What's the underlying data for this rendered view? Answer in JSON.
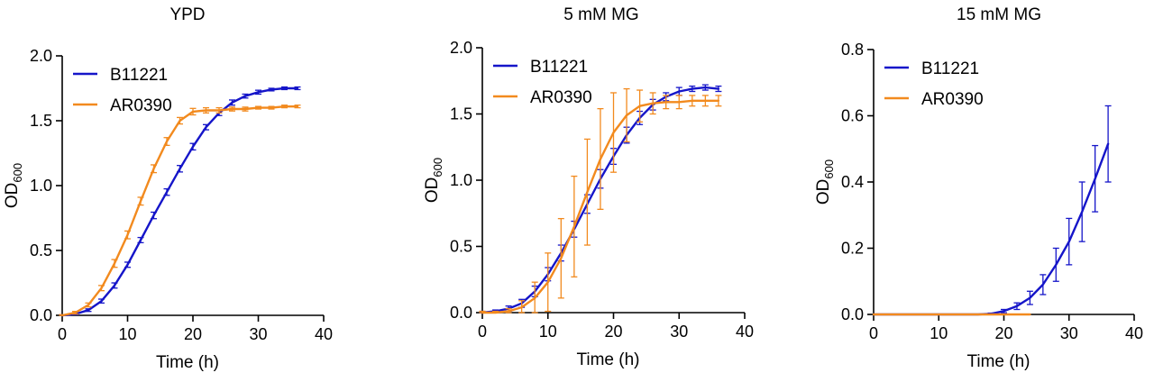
{
  "colors": {
    "B11221": "#1515c9",
    "AR0390": "#f28a1e",
    "axis": "#000000"
  },
  "chart_data": [
    {
      "type": "line",
      "title": "YPD",
      "xlabel": "Time (h)",
      "ylabel": "OD",
      "ylabel_sub": "600",
      "xlim": [
        0,
        40
      ],
      "ylim": [
        0,
        2.0
      ],
      "xticks": [
        "0",
        "10",
        "20",
        "30",
        "40"
      ],
      "yticks": [
        "0.0",
        "0.5",
        "1.0",
        "1.5",
        "2.0"
      ],
      "legend_position": "top-left",
      "grid": false,
      "series": [
        {
          "name": "B11221",
          "color_key": "B11221",
          "x": [
            0,
            2,
            4,
            6,
            8,
            10,
            12,
            14,
            16,
            18,
            20,
            22,
            24,
            26,
            28,
            30,
            32,
            34,
            36
          ],
          "y": [
            0.0,
            0.01,
            0.04,
            0.11,
            0.23,
            0.39,
            0.58,
            0.77,
            0.95,
            1.13,
            1.3,
            1.45,
            1.56,
            1.64,
            1.69,
            1.72,
            1.74,
            1.75,
            1.75
          ],
          "err": [
            0.005,
            0.005,
            0.01,
            0.015,
            0.02,
            0.02,
            0.02,
            0.025,
            0.025,
            0.025,
            0.025,
            0.02,
            0.02,
            0.02,
            0.015,
            0.015,
            0.01,
            0.01,
            0.01
          ]
        },
        {
          "name": "AR0390",
          "color_key": "AR0390",
          "x": [
            0,
            2,
            4,
            6,
            8,
            10,
            12,
            14,
            16,
            18,
            20,
            22,
            24,
            26,
            28,
            30,
            32,
            34,
            36
          ],
          "y": [
            0.0,
            0.02,
            0.08,
            0.21,
            0.4,
            0.62,
            0.88,
            1.13,
            1.34,
            1.5,
            1.57,
            1.58,
            1.58,
            1.59,
            1.59,
            1.6,
            1.6,
            1.61,
            1.61
          ],
          "err": [
            0.005,
            0.01,
            0.015,
            0.02,
            0.03,
            0.03,
            0.03,
            0.03,
            0.03,
            0.025,
            0.025,
            0.02,
            0.02,
            0.015,
            0.015,
            0.01,
            0.01,
            0.01,
            0.01
          ]
        }
      ]
    },
    {
      "type": "line",
      "title": "5 mM MG",
      "xlabel": "Time (h)",
      "ylabel": "OD",
      "ylabel_sub": "600",
      "xlim": [
        0,
        40
      ],
      "ylim": [
        0,
        2.0
      ],
      "xticks": [
        "0",
        "10",
        "20",
        "30",
        "40"
      ],
      "yticks": [
        "0.0",
        "0.5",
        "1.0",
        "1.5",
        "2.0"
      ],
      "legend_position": "top-left",
      "grid": false,
      "series": [
        {
          "name": "B11221",
          "color_key": "B11221",
          "x": [
            0,
            2,
            4,
            6,
            8,
            10,
            12,
            14,
            16,
            18,
            20,
            22,
            24,
            26,
            28,
            30,
            32,
            34,
            36
          ],
          "y": [
            0.0,
            0.01,
            0.03,
            0.07,
            0.16,
            0.29,
            0.45,
            0.63,
            0.82,
            1.01,
            1.18,
            1.34,
            1.47,
            1.57,
            1.63,
            1.67,
            1.69,
            1.7,
            1.69
          ],
          "err": [
            0.01,
            0.01,
            0.02,
            0.03,
            0.04,
            0.05,
            0.06,
            0.06,
            0.07,
            0.07,
            0.06,
            0.06,
            0.05,
            0.04,
            0.03,
            0.03,
            0.02,
            0.02,
            0.02
          ]
        },
        {
          "name": "AR0390",
          "color_key": "AR0390",
          "x": [
            0,
            2,
            4,
            6,
            8,
            10,
            12,
            14,
            16,
            18,
            20,
            22,
            24,
            26,
            28,
            30,
            32,
            34,
            36
          ],
          "y": [
            0.0,
            0.0,
            0.01,
            0.04,
            0.11,
            0.23,
            0.41,
            0.65,
            0.91,
            1.16,
            1.36,
            1.49,
            1.56,
            1.58,
            1.59,
            1.59,
            1.6,
            1.6,
            1.6
          ],
          "err": [
            0.01,
            0.01,
            0.02,
            0.05,
            0.12,
            0.22,
            0.3,
            0.38,
            0.4,
            0.38,
            0.3,
            0.2,
            0.12,
            0.08,
            0.05,
            0.05,
            0.04,
            0.04,
            0.04
          ]
        }
      ]
    },
    {
      "type": "line",
      "title": "15 mM MG",
      "xlabel": "Time (h)",
      "ylabel": "OD",
      "ylabel_sub": "600",
      "xlim": [
        0,
        40
      ],
      "ylim": [
        0,
        0.8
      ],
      "xticks": [
        "0",
        "10",
        "20",
        "30",
        "40"
      ],
      "yticks": [
        "0.0",
        "0.2",
        "0.4",
        "0.6",
        "0.8"
      ],
      "legend_position": "top-left",
      "grid": false,
      "series": [
        {
          "name": "B11221",
          "color_key": "B11221",
          "x": [
            0,
            2,
            4,
            6,
            8,
            10,
            12,
            14,
            16,
            18,
            20,
            22,
            24,
            26,
            28,
            30,
            32,
            34,
            36
          ],
          "y": [
            0.0,
            0.0,
            0.0,
            0.0,
            0.0,
            0.0,
            0.0,
            0.0,
            0.0,
            0.002,
            0.01,
            0.025,
            0.05,
            0.09,
            0.15,
            0.22,
            0.31,
            0.41,
            0.515
          ],
          "err": [
            0,
            0,
            0,
            0,
            0,
            0,
            0,
            0,
            0,
            0.002,
            0.005,
            0.01,
            0.02,
            0.03,
            0.05,
            0.07,
            0.09,
            0.1,
            0.115
          ]
        },
        {
          "name": "AR0390",
          "color_key": "AR0390",
          "x": [
            0,
            2,
            4,
            6,
            8,
            10,
            12,
            14,
            16,
            18,
            20,
            22,
            24
          ],
          "y": [
            0,
            0,
            0,
            0,
            0,
            0,
            0,
            0,
            0,
            0,
            0,
            0,
            0
          ],
          "err": [
            0,
            0,
            0,
            0,
            0,
            0,
            0,
            0,
            0,
            0,
            0,
            0,
            0
          ]
        }
      ]
    }
  ]
}
